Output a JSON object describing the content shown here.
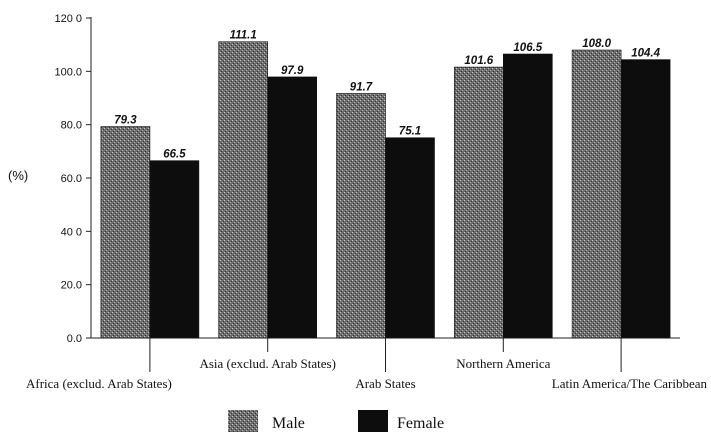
{
  "chart_data": {
    "type": "bar",
    "title": "",
    "ylabel": "(%)",
    "xlabel": "",
    "ylim": [
      0,
      120
    ],
    "yticks": [
      {
        "value": 0,
        "label": "0.0"
      },
      {
        "value": 20,
        "label": "20.0"
      },
      {
        "value": 40,
        "label": "40 0"
      },
      {
        "value": 60,
        "label": "60.0"
      },
      {
        "value": 80,
        "label": "80.0"
      },
      {
        "value": 100,
        "label": "100.0"
      },
      {
        "value": 120,
        "label": "120 0"
      }
    ],
    "categories": [
      "Africa (exclud. Arab States)",
      "Asia (exclud. Arab States)",
      "Arab States",
      "Northern America",
      "Latin America/The Caribbean"
    ],
    "series": [
      {
        "name": "Male",
        "values": [
          79.3,
          111.1,
          91.7,
          101.6,
          108.0
        ],
        "labels": [
          "79.3",
          "111.1",
          "91.7",
          "101.6",
          "108.0"
        ],
        "color": "#555555",
        "pattern": "stipple"
      },
      {
        "name": "Female",
        "values": [
          66.5,
          97.9,
          75.1,
          106.5,
          104.4
        ],
        "labels": [
          "66.5",
          "97.9",
          "75.1",
          "106.5",
          "104.4"
        ],
        "color": "#0d0d0d",
        "pattern": "solid"
      }
    ],
    "grid": false,
    "legend_position": "bottom-center"
  }
}
